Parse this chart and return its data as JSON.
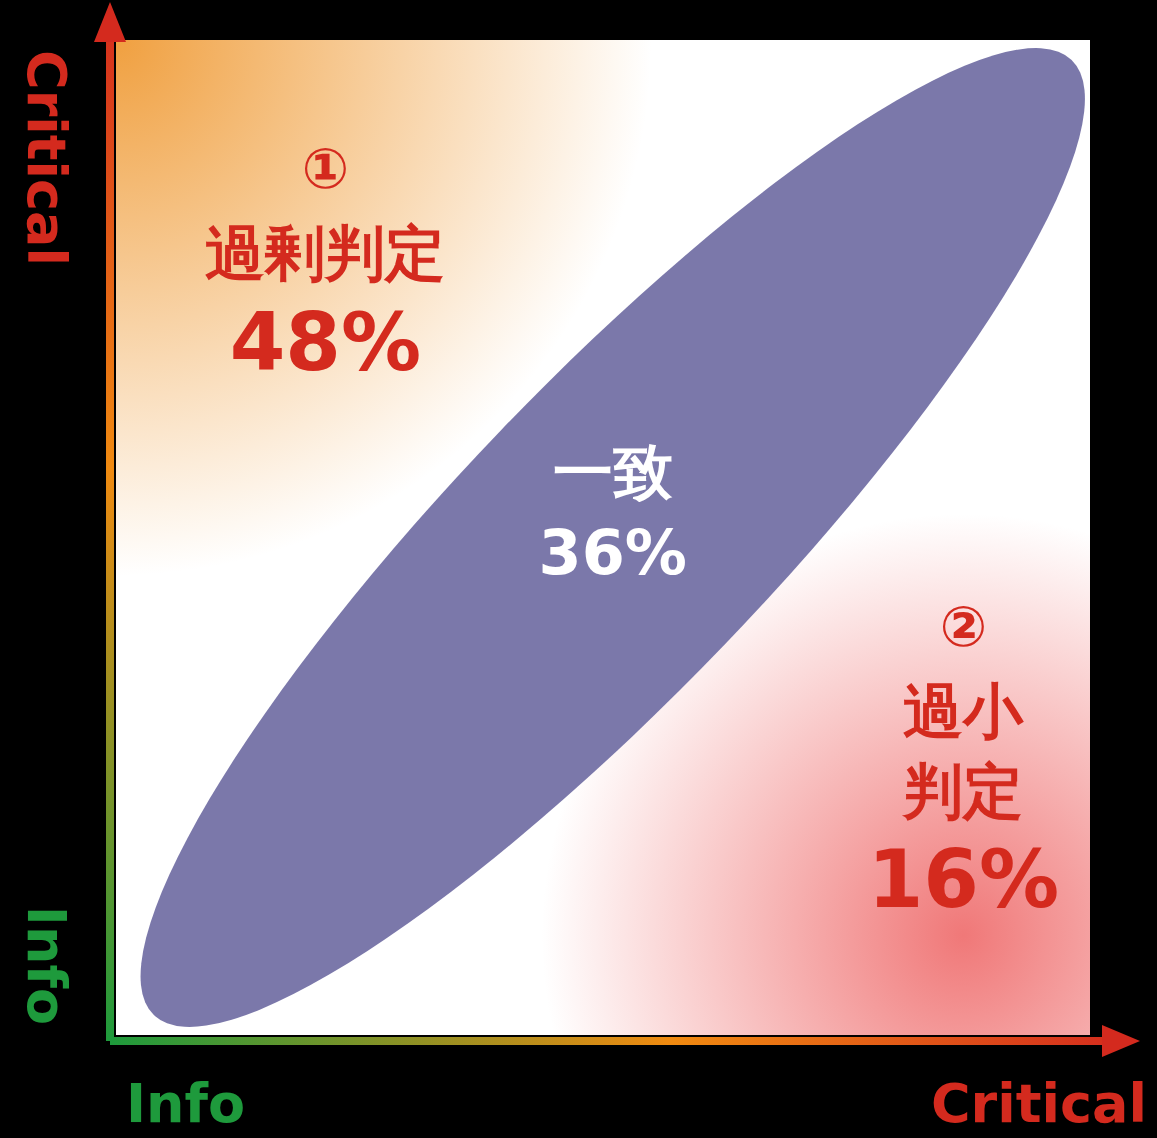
{
  "chart_data": {
    "type": "other",
    "categories": [
      "過剰判定",
      "一致",
      "過小判定"
    ],
    "values": [
      48,
      36,
      16
    ],
    "value_labels": [
      "48%",
      "36%",
      "16%"
    ],
    "colors": [
      "#f0a040",
      "#7b78aa",
      "#f07878"
    ],
    "annotations": [
      "①",
      "②",
      "Info",
      "Critical",
      "Info",
      "Critical"
    ],
    "legend": false
  }
}
